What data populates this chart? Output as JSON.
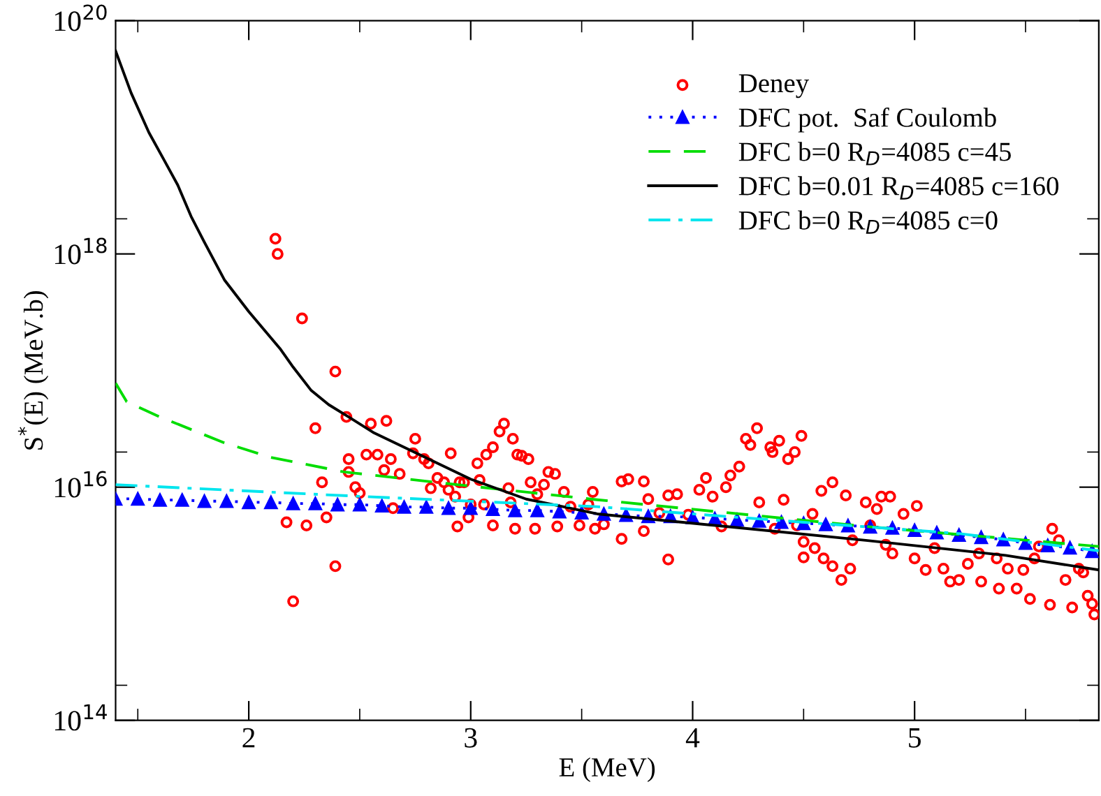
{
  "chart_data": {
    "type": "line",
    "xlabel": "E (MeV)",
    "ylabel": "S$^{*}$(E) (MeV.b)",
    "log": "y",
    "xlim": [
      1.4,
      5.83
    ],
    "ylim": [
      100000000000000.0,
      1e+20
    ],
    "xticks": [
      {
        "value": 1.5,
        "label": null
      },
      2,
      {
        "value": 2.5,
        "label": null
      },
      3,
      {
        "value": 3.5,
        "label": null
      },
      4,
      {
        "value": 4.5,
        "label": null
      },
      5,
      {
        "value": 5.5,
        "label": null
      }
    ],
    "yticks": [
      {
        "value": 100000000000000.0,
        "label": "10$^{14}$"
      },
      {
        "value": 200000000000000.0,
        "label": null
      },
      {
        "value": 1e+16,
        "label": "10$^{16}$"
      },
      {
        "value": 2e+16,
        "label": null
      },
      {
        "value": 1e+18,
        "label": "10$^{18}$"
      },
      {
        "value": 2e+18,
        "label": null
      },
      {
        "value": 1e+20,
        "label": "10$^{20}$"
      }
    ],
    "grid": false,
    "legend": "top right",
    "series": [
      {
        "name": "Deney",
        "type": "scatter",
        "marker": "circle",
        "color": "#ff0000",
        "x": [
          2.12,
          2.13,
          2.24,
          2.39,
          2.17,
          2.2,
          2.26,
          2.3,
          2.33,
          2.35,
          2.39,
          2.44,
          2.45,
          2.45,
          2.48,
          2.5,
          2.53,
          2.55,
          2.58,
          2.61,
          2.62,
          2.64,
          2.65,
          2.68,
          2.74,
          2.75,
          2.79,
          2.81,
          2.82,
          2.85,
          2.88,
          2.9,
          2.91,
          2.93,
          2.94,
          2.95,
          2.97,
          2.99,
          3.0,
          3.03,
          3.04,
          3.06,
          3.07,
          3.1,
          3.1,
          3.13,
          3.15,
          3.17,
          3.18,
          3.19,
          3.2,
          3.21,
          3.23,
          3.26,
          3.27,
          3.29,
          3.3,
          3.33,
          3.35,
          3.38,
          3.39,
          3.42,
          3.45,
          3.49,
          3.53,
          3.55,
          3.56,
          3.6,
          3.68,
          3.68,
          3.71,
          3.78,
          3.78,
          3.8,
          3.85,
          3.89,
          3.89,
          3.93,
          3.98,
          4.03,
          4.06,
          4.09,
          4.13,
          4.15,
          4.17,
          4.21,
          4.24,
          4.26,
          4.29,
          4.3,
          4.35,
          4.36,
          4.37,
          4.39,
          4.41,
          4.43,
          4.46,
          4.47,
          4.49,
          4.5,
          4.5,
          4.54,
          4.55,
          4.58,
          4.59,
          4.63,
          4.63,
          4.67,
          4.69,
          4.71,
          4.72,
          4.78,
          4.8,
          4.83,
          4.85,
          4.87,
          4.89,
          4.9,
          4.95,
          5.0,
          5.01,
          5.05,
          5.09,
          5.13,
          5.16,
          5.2,
          5.24,
          5.29,
          5.3,
          5.37,
          5.38,
          5.42,
          5.46,
          5.49,
          5.52,
          5.54,
          5.56,
          5.61,
          5.62,
          5.65,
          5.68,
          5.71,
          5.74,
          5.76,
          5.78,
          5.8,
          5.81
        ],
        "values": [
          1.35e+18,
          1e+18,
          2.8e+17,
          9.8e+16,
          5000000000000000.0,
          1050000000000000.0,
          4700000000000000.0,
          3.2e+16,
          1.1e+16,
          5500000000000000.0,
          2100000000000000.0,
          4e+16,
          1.74e+16,
          1.35e+16,
          1e+16,
          8900000000000000.0,
          1.9e+16,
          3.5e+16,
          1.9e+16,
          1.4e+16,
          3.7e+16,
          1.74e+16,
          6600000000000000.0,
          1.3e+16,
          1.95e+16,
          2.6e+16,
          1.74e+16,
          1.6e+16,
          9800000000000000.0,
          1.2e+16,
          1.1e+16,
          9500000000000000.0,
          1.95e+16,
          8300000000000000.0,
          4600000000000000.0,
          1.1e+16,
          1.1e+16,
          5500000000000000.0,
          7100000000000000.0,
          1.6e+16,
          1.15e+16,
          7100000000000000.0,
          1.9e+16,
          4700000000000000.0,
          2.2e+16,
          3e+16,
          3.5e+16,
          9800000000000000.0,
          7400000000000000.0,
          2.6e+16,
          4400000000000000.0,
          1.9e+16,
          1.86e+16,
          1.74e+16,
          1.1e+16,
          4400000000000000.0,
          8700000000000000.0,
          1.05e+16,
          1.35e+16,
          1.3e+16,
          4600000000000000.0,
          9100000000000000.0,
          6800000000000000.0,
          4700000000000000.0,
          7100000000000000.0,
          9100000000000000.0,
          4400000000000000.0,
          4800000000000000.0,
          1.12e+16,
          3600000000000000.0,
          1.17e+16,
          1.12e+16,
          4200000000000000.0,
          7900000000000000.0,
          6000000000000000.0,
          8500000000000000.0,
          2400000000000000.0,
          8700000000000000.0,
          5800000000000000.0,
          9500000000000000.0,
          1.2e+16,
          8300000000000000.0,
          4600000000000000.0,
          1e+16,
          1.26e+16,
          1.5e+16,
          2.6e+16,
          2.3e+16,
          3.2e+16,
          7400000000000000.0,
          2.2e+16,
          2e+16,
          4400000000000000.0,
          2.5e+16,
          7800000000000000.0,
          1.74e+16,
          2e+16,
          4700000000000000.0,
          2.75e+16,
          3400000000000000.0,
          2500000000000000.0,
          5900000000000000.0,
          3000000000000000.0,
          9300000000000000.0,
          2450000000000000.0,
          1.1e+16,
          2100000000000000.0,
          1600000000000000.0,
          8500000000000000.0,
          2000000000000000.0,
          3500000000000000.0,
          7400000000000000.0,
          4700000000000000.0,
          6500000000000000.0,
          8300000000000000.0,
          3200000000000000.0,
          8300000000000000.0,
          2700000000000000.0,
          5900000000000000.0,
          2450000000000000.0,
          6900000000000000.0,
          1950000000000000.0,
          3000000000000000.0,
          2000000000000000.0,
          1550000000000000.0,
          1600000000000000.0,
          2200000000000000.0,
          2700000000000000.0,
          1550000000000000.0,
          2450000000000000.0,
          1350000000000000.0,
          2000000000000000.0,
          1350000000000000.0,
          1950000000000000.0,
          1100000000000000.0,
          2450000000000000.0,
          3100000000000000.0,
          980000000000000.0,
          4400000000000000.0,
          3500000000000000.0,
          1600000000000000.0,
          930000000000000.0,
          2000000000000000.0,
          1860000000000000.0,
          1170000000000000.0,
          1000000000000000.0,
          810000000000000.0
        ]
      },
      {
        "name": "DFC pot.  Saf Coulomb",
        "marker": "triangle",
        "line_style": "dotted",
        "color": "#0000ff",
        "x": [
          1.4,
          1.5,
          1.6,
          1.7,
          1.8,
          1.9,
          2.0,
          2.1,
          2.2,
          2.3,
          2.4,
          2.5,
          2.6,
          2.7,
          2.8,
          2.9,
          3.0,
          3.1,
          3.2,
          3.3,
          3.4,
          3.5,
          3.6,
          3.7,
          3.8,
          3.9,
          4.0,
          4.1,
          4.2,
          4.3,
          4.4,
          4.5,
          4.6,
          4.7,
          4.8,
          4.9,
          5.0,
          5.1,
          5.2,
          5.3,
          5.4,
          5.5,
          5.6,
          5.7,
          5.8
        ],
        "values": [
          7940000000000000.0,
          7940000000000000.0,
          7760000000000000.0,
          7760000000000000.0,
          7590000000000000.0,
          7590000000000000.0,
          7410000000000000.0,
          7410000000000000.0,
          7240000000000000.0,
          7240000000000000.0,
          7080000000000000.0,
          7080000000000000.0,
          6920000000000000.0,
          6760000000000000.0,
          6760000000000000.0,
          6610000000000000.0,
          6610000000000000.0,
          6460000000000000.0,
          6310000000000000.0,
          6310000000000000.0,
          6170000000000000.0,
          6030000000000000.0,
          5890000000000000.0,
          5750000000000000.0,
          5620000000000000.0,
          5620000000000000.0,
          5500000000000000.0,
          5370000000000000.0,
          5250000000000000.0,
          5130000000000000.0,
          5010000000000000.0,
          4900000000000000.0,
          4790000000000000.0,
          4680000000000000.0,
          4570000000000000.0,
          4470000000000000.0,
          4270000000000000.0,
          4070000000000000.0,
          3890000000000000.0,
          3720000000000000.0,
          3550000000000000.0,
          3310000000000000.0,
          3160000000000000.0,
          3020000000000000.0,
          2820000000000000.0
        ]
      },
      {
        "name": "DFC b=0 R$_{D}$=4085 c=45",
        "marker": "none",
        "line_style": "dashed",
        "color": "#00dd00",
        "x": [
          1.4,
          1.45,
          1.6,
          1.89,
          2.1,
          2.43,
          2.94,
          3.57,
          4.78,
          5.83
        ],
        "values": [
          7.8e+16,
          5.4e+16,
          4e+16,
          2.4e+16,
          1.8e+16,
          1.35e+16,
          1.05e+16,
          7800000000000000.0,
          4600000000000000.0,
          3100000000000000.0
        ]
      },
      {
        "name": "DFC b=0.01 R$_{D}$=4085 c=160",
        "marker": "none",
        "line_style": "solid",
        "color": "#000000",
        "x": [
          1.4,
          1.47,
          1.55,
          1.62,
          1.68,
          1.74,
          1.8,
          1.89,
          2.0,
          2.14,
          2.2,
          2.28,
          2.36,
          2.45,
          2.56,
          2.79,
          3.0,
          3.25,
          3.57,
          4.15,
          4.78,
          5.41,
          5.83
        ],
        "values": [
          5.5e+19,
          2.4e+19,
          1.1e+19,
          6.3e+18,
          3.9e+18,
          2.1e+18,
          1.26e+18,
          6e+17,
          3.2e+17,
          1.55e+17,
          1.07e+17,
          6.8e+16,
          5.1e+16,
          4e+16,
          2.95e+16,
          1.82e+16,
          1.17e+16,
          7900000000000000.0,
          5900000000000000.0,
          4600000000000000.0,
          3500000000000000.0,
          2600000000000000.0,
          1950000000000000.0
        ]
      },
      {
        "name": "DFC b=0 R$_{D}$=4085 c=0",
        "marker": "none",
        "line_style": "dashdot",
        "color": "#00e5ee",
        "x": [
          1.4,
          2.52,
          3.57,
          4.5,
          5.2,
          5.83
        ],
        "values": [
          1.05e+16,
          8300000000000000.0,
          6800000000000000.0,
          5000000000000000.0,
          4000000000000000.0,
          2850000000000000.0
        ]
      }
    ]
  }
}
